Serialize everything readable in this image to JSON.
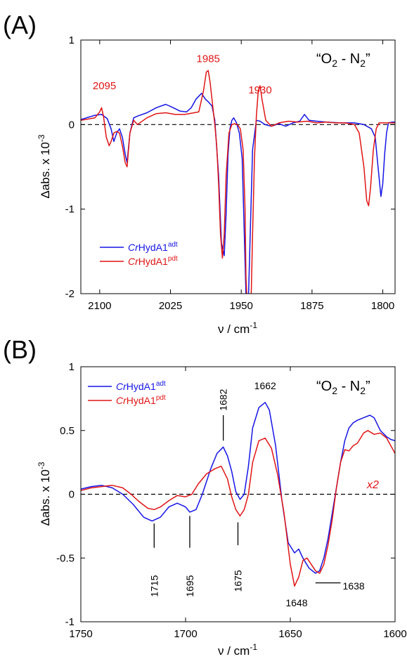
{
  "chart_data": [
    {
      "type": "line",
      "panel_label": "(A)",
      "inset_text": {
        "left_quote": "“",
        "o": "O",
        "o_sub": "2",
        "dash": " - N",
        "n_sub": "2",
        "right_quote": "”"
      },
      "xlabel": {
        "nu": "ν",
        "unit": " / cm",
        "sup": "-1"
      },
      "ylabel": {
        "main": "Δabs. x 10",
        "sup": "-3"
      },
      "xlim": [
        2120,
        1787
      ],
      "ylim": [
        -2,
        1
      ],
      "x_ticks": [
        "2100",
        "2025",
        "1950",
        "1875",
        "1800"
      ],
      "x_tick_values": [
        2100,
        2025,
        1950,
        1875,
        1800
      ],
      "y_ticks": [
        "-2",
        "-1",
        "0",
        "1"
      ],
      "y_tick_values": [
        -2,
        -1,
        0,
        1
      ],
      "zero_line": true,
      "grid": false,
      "legend_position": "lower-left",
      "colors": {
        "adt": "#1515e6",
        "pdt": "#e01515",
        "annotation": "#e01515"
      },
      "annotations": [
        {
          "text": "2095",
          "x": 2095,
          "y": 0.42
        },
        {
          "text": "1985",
          "x": 1985,
          "y": 0.74
        },
        {
          "text": "1930",
          "x": 1930,
          "y": 0.37
        }
      ],
      "series": [
        {
          "name": "adt",
          "legend_italic": "Cr",
          "legend_main": "HydA1",
          "legend_sup": "adt",
          "color": "#1515e6",
          "x": [
            2120,
            2105,
            2098,
            2092,
            2088,
            2085,
            2082,
            2079,
            2076,
            2073,
            2071,
            2068,
            2064,
            2060,
            2050,
            2040,
            2030,
            2022,
            2015,
            2008,
            2003,
            1998,
            1992,
            1988,
            1985,
            1981,
            1978,
            1974,
            1971,
            1968,
            1966,
            1964,
            1962,
            1960,
            1958,
            1955,
            1952,
            1949,
            1947,
            1945,
            1944,
            1943,
            1941,
            1938,
            1934,
            1930,
            1925,
            1918,
            1910,
            1903,
            1895,
            1888,
            1883,
            1878,
            1870,
            1860,
            1845,
            1830,
            1820,
            1812,
            1808,
            1805,
            1802,
            1800,
            1798,
            1796,
            1794,
            1790,
            1787
          ],
          "y": [
            0.06,
            0.11,
            0.12,
            0.07,
            -0.05,
            -0.2,
            -0.1,
            -0.05,
            -0.15,
            -0.35,
            -0.45,
            -0.1,
            0.08,
            0.1,
            0.14,
            0.2,
            0.24,
            0.2,
            0.16,
            0.15,
            0.2,
            0.3,
            0.37,
            0.3,
            0.27,
            0.22,
            0.05,
            -0.6,
            -1.4,
            -1.55,
            -1.05,
            -0.35,
            -0.05,
            0.05,
            0.08,
            0.02,
            -0.1,
            -0.4,
            -1.2,
            -2.0,
            -2.3,
            -2.3,
            -1.5,
            -0.3,
            0.05,
            0.04,
            0.0,
            -0.02,
            0.01,
            -0.02,
            0.02,
            0.04,
            0.12,
            0.05,
            0.04,
            0.03,
            0.02,
            0.02,
            0.0,
            -0.05,
            -0.15,
            -0.5,
            -0.85,
            -0.7,
            -0.35,
            -0.1,
            0.02,
            0.03,
            0.03
          ]
        },
        {
          "name": "pdt",
          "legend_italic": "Cr",
          "legend_main": "HydA1",
          "legend_sup": "pdt",
          "color": "#e01515",
          "x": [
            2120,
            2105,
            2100,
            2098,
            2096,
            2093,
            2090,
            2088,
            2085,
            2082,
            2079,
            2076,
            2073,
            2071,
            2068,
            2064,
            2060,
            2050,
            2040,
            2030,
            2020,
            2010,
            2000,
            1995,
            1990,
            1987,
            1985,
            1983,
            1980,
            1978,
            1976,
            1974,
            1972,
            1970,
            1968,
            1966,
            1963,
            1960,
            1957,
            1954,
            1951,
            1948,
            1946,
            1945,
            1943,
            1940,
            1938,
            1936,
            1934,
            1932,
            1930,
            1928,
            1924,
            1918,
            1910,
            1900,
            1890,
            1880,
            1870,
            1860,
            1850,
            1840,
            1830,
            1825,
            1820,
            1817,
            1815,
            1813,
            1810,
            1807,
            1804,
            1800,
            1795,
            1790,
            1787
          ],
          "y": [
            0.05,
            0.08,
            0.15,
            0.2,
            0.1,
            -0.15,
            -0.25,
            -0.2,
            -0.1,
            -0.08,
            -0.1,
            -0.25,
            -0.45,
            -0.5,
            -0.1,
            0.05,
            0.0,
            0.08,
            0.13,
            0.14,
            0.12,
            0.12,
            0.14,
            0.15,
            0.4,
            0.62,
            0.64,
            0.5,
            0.2,
            0.0,
            -0.25,
            -0.7,
            -1.3,
            -1.58,
            -1.3,
            -0.6,
            -0.1,
            0.0,
            0.01,
            0.0,
            -0.05,
            -0.3,
            -1.0,
            -1.8,
            -2.3,
            -2.3,
            -1.3,
            -0.4,
            0.1,
            0.4,
            0.46,
            0.3,
            0.05,
            -0.02,
            0.02,
            0.04,
            0.03,
            0.04,
            0.02,
            0.03,
            0.02,
            0.02,
            0.0,
            -0.1,
            -0.5,
            -0.9,
            -0.96,
            -0.75,
            -0.3,
            -0.05,
            0.02,
            0.02,
            0.02,
            0.02,
            0.02
          ]
        }
      ]
    },
    {
      "type": "line",
      "panel_label": "(B)",
      "inset_text": {
        "left_quote": "“",
        "o": "O",
        "o_sub": "2",
        "dash": " - N",
        "n_sub": "2",
        "right_quote": "”"
      },
      "xlabel": {
        "nu": "ν",
        "unit": " / cm",
        "sup": "-1"
      },
      "ylabel": {
        "main": "Δabs. x 10",
        "sup": "-3"
      },
      "xlim": [
        1750,
        1600
      ],
      "ylim": [
        -1,
        1
      ],
      "x_ticks": [
        "1750",
        "1700",
        "1650",
        "1600"
      ],
      "x_tick_values": [
        1750,
        1700,
        1650,
        1600
      ],
      "y_ticks": [
        "-1",
        "-0.5",
        "0",
        "0.5",
        "1"
      ],
      "y_tick_values": [
        -1,
        -0.5,
        0,
        0.5,
        1
      ],
      "zero_line": true,
      "grid": false,
      "legend_position": "top-left",
      "scale_note": "x2",
      "colors": {
        "adt": "#1515e6",
        "pdt": "#e01515",
        "annotation": "#000000",
        "scale_note": "#e01515"
      },
      "peak_labels": [
        {
          "text": "1715",
          "x": 1715,
          "y_text": -0.72,
          "tick": [
            -0.23,
            -0.42
          ],
          "rotated": true
        },
        {
          "text": "1695",
          "x": 1698,
          "y_text": -0.72,
          "tick": [
            -0.17,
            -0.42
          ],
          "rotated": true
        },
        {
          "text": "1675",
          "x": 1675,
          "y_text": -0.68,
          "tick": [
            -0.22,
            -0.4
          ],
          "rotated": true
        },
        {
          "text": "1682",
          "x": 1682,
          "y_text": 0.74,
          "tick": [
            0.62,
            0.42
          ],
          "rotated": true
        },
        {
          "text": "1662",
          "x": 1662,
          "y_text": 0.85,
          "tick": null,
          "rotated": false
        },
        {
          "text": "1648",
          "x": 1647,
          "y_text": -0.85,
          "tick": null,
          "rotated": false
        },
        {
          "text": "1638",
          "x": 1627,
          "y_text": -0.72,
          "tick": null,
          "rotated": false,
          "hline": [
            1638,
            1626,
            -0.695
          ]
        }
      ],
      "series": [
        {
          "name": "adt",
          "legend_italic": "Cr",
          "legend_main": "HydA1",
          "legend_sup": "adt",
          "color": "#1515e6",
          "x": [
            1750,
            1745,
            1740,
            1735,
            1730,
            1725,
            1720,
            1716,
            1712,
            1708,
            1704,
            1700,
            1698,
            1695,
            1692,
            1688,
            1685,
            1682,
            1680,
            1678,
            1676,
            1674,
            1672,
            1670,
            1668,
            1665,
            1662,
            1660,
            1657,
            1654,
            1651,
            1648,
            1646,
            1644,
            1641,
            1638,
            1636,
            1634,
            1632,
            1630,
            1628,
            1626,
            1624,
            1622,
            1620,
            1618,
            1615,
            1612,
            1610,
            1607,
            1604,
            1602,
            1600
          ],
          "y": [
            0.04,
            0.06,
            0.07,
            0.05,
            0.0,
            -0.08,
            -0.18,
            -0.21,
            -0.18,
            -0.1,
            -0.07,
            -0.1,
            -0.14,
            -0.12,
            0.0,
            0.2,
            0.32,
            0.37,
            0.3,
            0.18,
            0.02,
            -0.04,
            0.0,
            0.22,
            0.52,
            0.68,
            0.72,
            0.66,
            0.38,
            -0.05,
            -0.38,
            -0.46,
            -0.43,
            -0.5,
            -0.58,
            -0.62,
            -0.6,
            -0.5,
            -0.35,
            -0.15,
            0.05,
            0.25,
            0.42,
            0.52,
            0.56,
            0.58,
            0.6,
            0.62,
            0.6,
            0.5,
            0.45,
            0.43,
            0.42
          ]
        },
        {
          "name": "pdt",
          "legend_italic": "Cr",
          "legend_main": "HydA1",
          "legend_sup": "pdt",
          "color": "#e01515",
          "x": [
            1750,
            1745,
            1740,
            1735,
            1730,
            1726,
            1722,
            1718,
            1715,
            1712,
            1708,
            1704,
            1700,
            1697,
            1694,
            1690,
            1686,
            1683,
            1680,
            1678,
            1676,
            1674,
            1672,
            1670,
            1668,
            1665,
            1662,
            1659,
            1656,
            1653,
            1650,
            1648,
            1646,
            1644,
            1642,
            1640,
            1638,
            1636,
            1634,
            1632,
            1630,
            1628,
            1626,
            1624,
            1622,
            1620,
            1618,
            1615,
            1613,
            1610,
            1607,
            1604,
            1602,
            1600
          ],
          "y": [
            0.03,
            0.05,
            0.06,
            0.07,
            0.05,
            0.0,
            -0.06,
            -0.11,
            -0.12,
            -0.1,
            -0.05,
            -0.01,
            -0.02,
            0.0,
            0.08,
            0.16,
            0.2,
            0.22,
            0.12,
            -0.02,
            -0.12,
            -0.17,
            -0.12,
            0.0,
            0.25,
            0.42,
            0.44,
            0.36,
            0.15,
            -0.15,
            -0.55,
            -0.72,
            -0.65,
            -0.52,
            -0.5,
            -0.55,
            -0.6,
            -0.62,
            -0.55,
            -0.4,
            -0.2,
            0.05,
            0.25,
            0.35,
            0.34,
            0.38,
            0.4,
            0.48,
            0.5,
            0.47,
            0.48,
            0.44,
            0.38,
            0.32
          ]
        }
      ]
    }
  ]
}
